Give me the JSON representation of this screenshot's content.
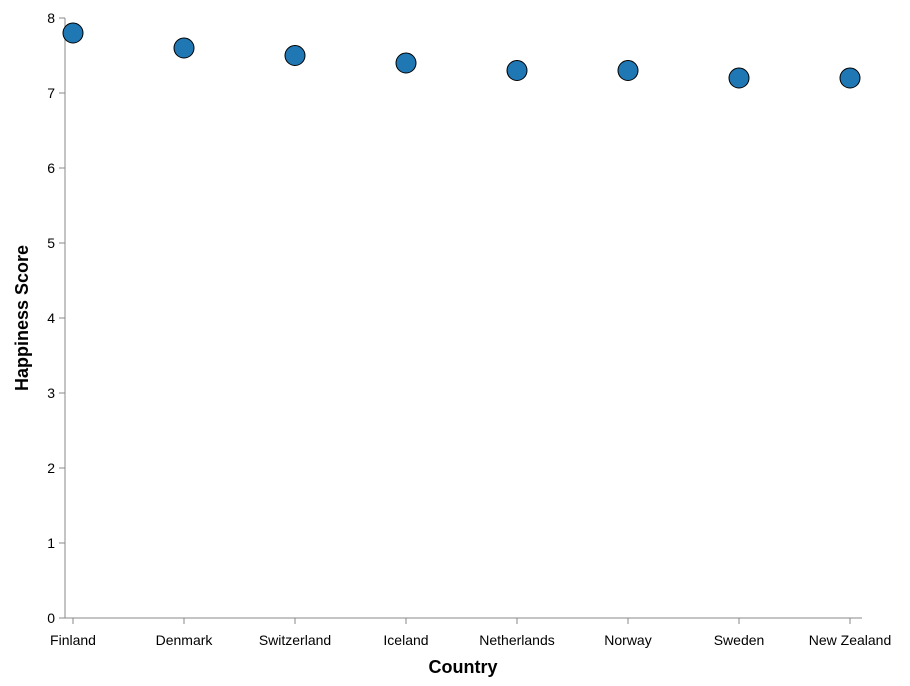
{
  "chart_data": {
    "type": "scatter",
    "categories": [
      "Finland",
      "Denmark",
      "Switzerland",
      "Iceland",
      "Netherlands",
      "Norway",
      "Sweden",
      "New Zealand"
    ],
    "series": [
      {
        "values": [
          7.8,
          7.6,
          7.5,
          7.4,
          7.3,
          7.3,
          7.2,
          7.2
        ]
      }
    ],
    "xlabel": "Country",
    "ylabel": "Happiness Score",
    "ylim": [
      0,
      8
    ],
    "yticks": [
      0,
      1,
      2,
      3,
      4,
      5,
      6,
      7,
      8
    ],
    "grid": false,
    "colors": {
      "point_fill": "#1f77b4",
      "point_stroke": "#000000",
      "axis": "#888888"
    }
  }
}
